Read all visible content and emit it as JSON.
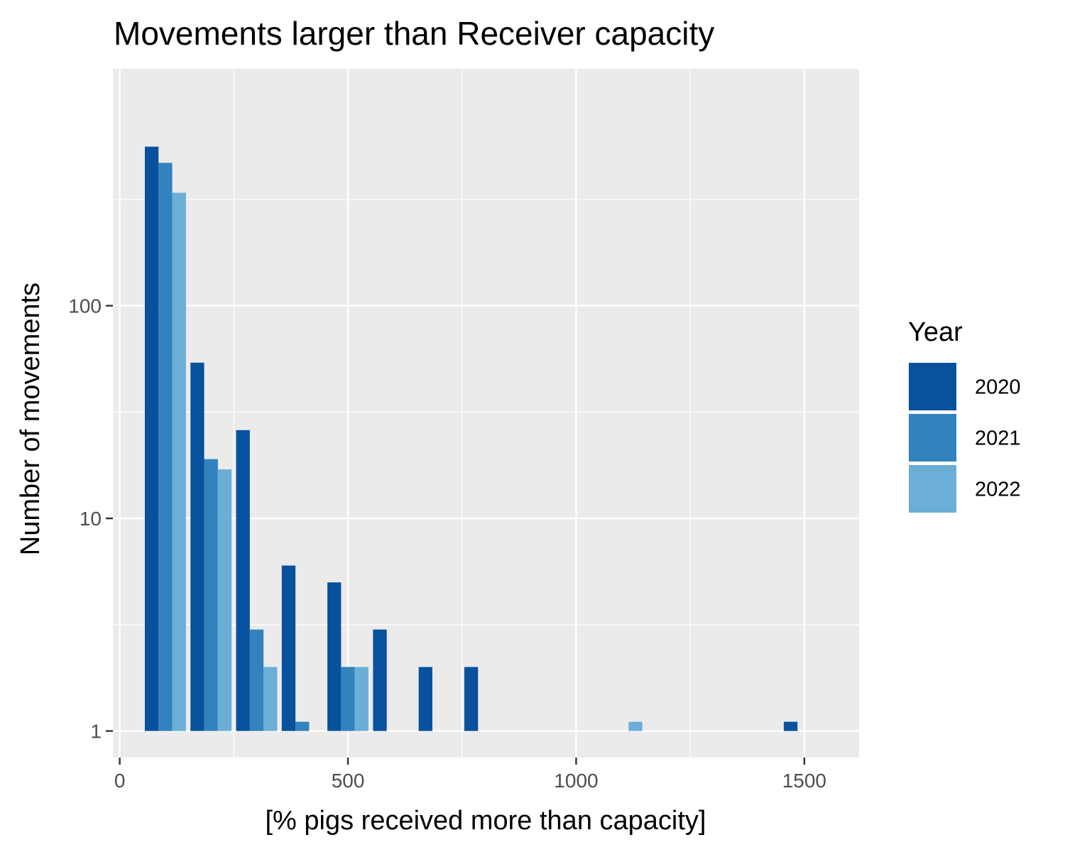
{
  "chart_data": {
    "type": "bar",
    "title": "Movements larger than Receiver capacity",
    "xlabel": "[% pigs received more than capacity]",
    "ylabel": "Number of movements",
    "y_scale": "log10",
    "xlim": [
      -15,
      1620
    ],
    "ylim": [
      0.75,
      1300
    ],
    "x_ticks": [
      0,
      500,
      1000,
      1500
    ],
    "x_tick_labels": [
      "0",
      "500",
      "1000",
      "1500"
    ],
    "y_ticks": [
      1,
      10,
      100
    ],
    "y_tick_labels": [
      "1",
      "10",
      "100"
    ],
    "grid": true,
    "bin_width": 100,
    "legend": {
      "title": "Year",
      "placement": "right"
    },
    "series": [
      {
        "name": "2020",
        "color": "#08519c",
        "x": [
          100,
          200,
          300,
          400,
          500,
          600,
          700,
          800,
          1500
        ],
        "values": [
          560,
          54,
          26,
          6,
          5,
          3,
          2,
          2,
          1
        ]
      },
      {
        "name": "2021",
        "color": "#3182bd",
        "x": [
          100,
          200,
          300,
          400,
          500
        ],
        "values": [
          470,
          19,
          3,
          1,
          2
        ]
      },
      {
        "name": "2022",
        "color": "#6baed6",
        "x": [
          100,
          200,
          300,
          500,
          1100
        ],
        "values": [
          340,
          17,
          2,
          2,
          1
        ]
      }
    ]
  }
}
